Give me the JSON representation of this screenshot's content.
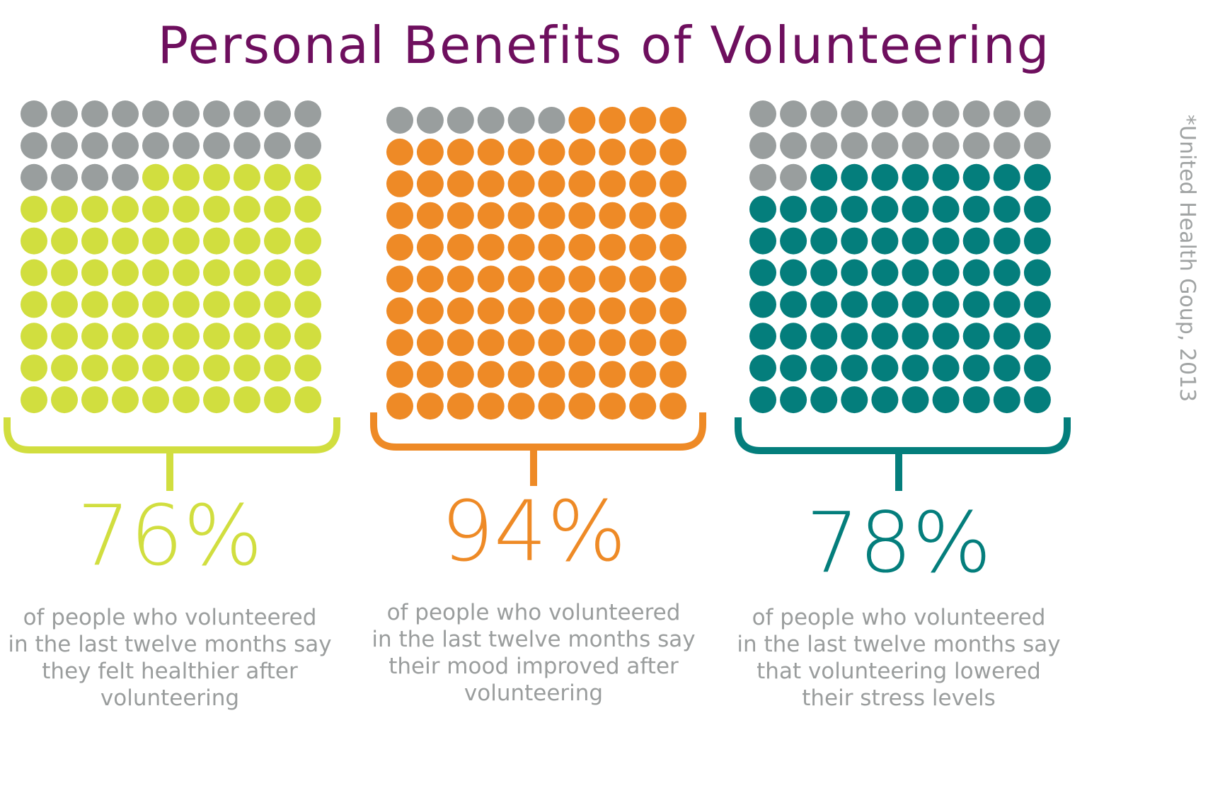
{
  "chart_data": {
    "type": "table",
    "title": "Personal Benefits of Volunteering",
    "source": "*United Health Goup, 2013",
    "grid": {
      "rows": 10,
      "cols": 10,
      "empty_color": "#999e9e"
    },
    "panels": [
      {
        "percent_label": "76%",
        "value": 76,
        "color": "#d1de3f",
        "description": [
          "of  people who volunteered",
          "in the last twelve months say",
          "they felt healthier after",
          "volunteering"
        ]
      },
      {
        "percent_label": "94%",
        "value": 94,
        "color": "#ee8a26",
        "description": [
          "of  people who volunteered",
          "in the last twelve months say",
          "their mood improved after",
          "volunteering"
        ]
      },
      {
        "percent_label": "78%",
        "value": 78,
        "color": "#047e7c",
        "description": [
          "of  people who volunteered",
          "in the last twelve months say",
          "that volunteering lowered",
          "their stress levels"
        ]
      }
    ]
  }
}
